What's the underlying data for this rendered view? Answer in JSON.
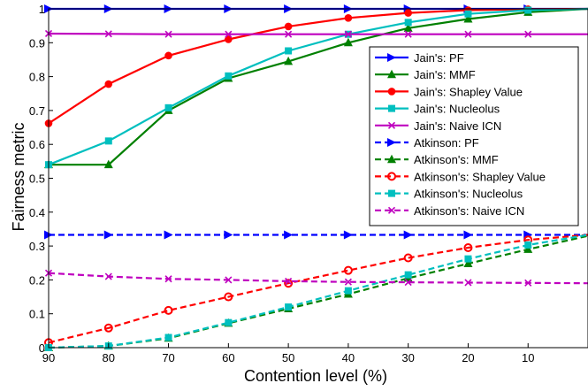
{
  "chart_data": {
    "type": "line",
    "title": "",
    "xlabel": "Contention level (%)",
    "ylabel": "Fairness metric",
    "x": [
      90,
      80,
      70,
      60,
      50,
      40,
      30,
      20,
      10,
      0
    ],
    "x_tick_labels": [
      "90",
      "80",
      "70",
      "60",
      "50",
      "40",
      "30",
      "20",
      "10"
    ],
    "x_axis_reversed": true,
    "xlim": [
      90,
      0
    ],
    "ylim": [
      0,
      1
    ],
    "y_ticks": [
      0,
      0.1,
      0.2,
      0.3,
      0.4,
      0.5,
      0.6,
      0.7,
      0.8,
      0.9,
      1
    ],
    "y_tick_labels": [
      "0",
      "0.1",
      "0.2",
      "0.3",
      "0.4",
      "0.5",
      "0.6",
      "0.7",
      "0.8",
      "0.9",
      "1"
    ],
    "grid": false,
    "legend_position": "right",
    "series": [
      {
        "name": "Jain's: PF",
        "color": "#0000ff",
        "line": "solid",
        "marker": "triangle-right",
        "values": [
          1.0,
          1.0,
          1.0,
          1.0,
          1.0,
          1.0,
          1.0,
          1.0,
          1.0,
          1.0
        ]
      },
      {
        "name": "Jain's: MMF",
        "color": "#008000",
        "line": "solid",
        "marker": "triangle-up",
        "values": [
          0.54,
          0.54,
          0.7,
          0.795,
          0.845,
          0.9,
          0.943,
          0.97,
          0.99,
          1.0
        ]
      },
      {
        "name": "Jain's: Shapley Value",
        "color": "#ff0000",
        "line": "solid",
        "marker": "circle",
        "values": [
          0.662,
          0.778,
          0.862,
          0.91,
          0.948,
          0.973,
          0.988,
          0.996,
          0.999,
          1.0
        ]
      },
      {
        "name": "Jain's: Nucleolus",
        "color": "#00bfbf",
        "line": "solid",
        "marker": "square",
        "values": [
          0.54,
          0.61,
          0.708,
          0.802,
          0.876,
          0.925,
          0.96,
          0.985,
          0.996,
          1.0
        ]
      },
      {
        "name": "Jain's: Naive ICN",
        "color": "#bf00bf",
        "line": "solid",
        "marker": "x",
        "values": [
          0.927,
          0.926,
          0.925,
          0.925,
          0.925,
          0.925,
          0.925,
          0.925,
          0.925,
          0.925
        ]
      },
      {
        "name": "Atkinson: PF",
        "color": "#0000ff",
        "line": "dashed",
        "marker": "triangle-right",
        "values": [
          0.333,
          0.333,
          0.333,
          0.333,
          0.333,
          0.333,
          0.333,
          0.333,
          0.333,
          0.333
        ]
      },
      {
        "name": "Atkinson's: MMF",
        "color": "#008000",
        "line": "dashed",
        "marker": "triangle-up",
        "values": [
          0.0,
          0.005,
          0.028,
          0.072,
          0.115,
          0.158,
          0.205,
          0.248,
          0.29,
          0.33
        ]
      },
      {
        "name": "Atkinson's: Shapley Value",
        "color": "#ff0000",
        "line": "dashed",
        "marker": "circle-open",
        "values": [
          0.015,
          0.058,
          0.11,
          0.15,
          0.19,
          0.228,
          0.265,
          0.295,
          0.318,
          0.333
        ]
      },
      {
        "name": "Atkinson's: Nucleolus",
        "color": "#00bfbf",
        "line": "dashed",
        "marker": "square",
        "values": [
          0.0,
          0.005,
          0.03,
          0.074,
          0.12,
          0.168,
          0.215,
          0.262,
          0.303,
          0.333
        ]
      },
      {
        "name": "Atkinson's: Naive ICN",
        "color": "#bf00bf",
        "line": "dashed",
        "marker": "x",
        "values": [
          0.22,
          0.21,
          0.203,
          0.2,
          0.196,
          0.194,
          0.193,
          0.192,
          0.191,
          0.19
        ]
      }
    ]
  }
}
